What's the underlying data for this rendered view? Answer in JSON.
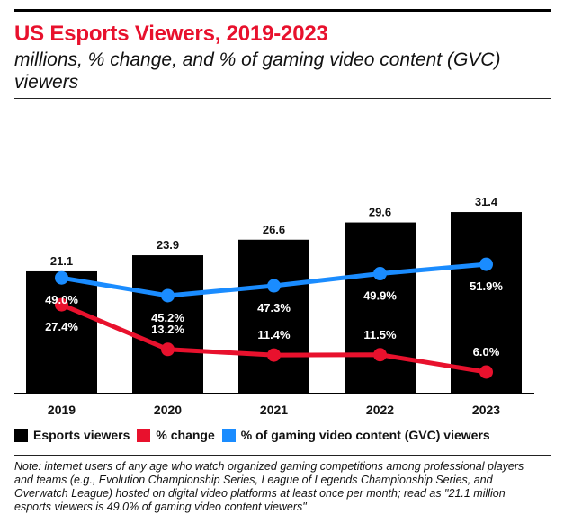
{
  "header": {
    "title": "US Esports Viewers, 2019-2023",
    "subtitle": "millions, % change, and % of gaming video content (GVC) viewers"
  },
  "colors": {
    "title": "#e8112d",
    "bars": "#000000",
    "change": "#e8112d",
    "share": "#1a8cff"
  },
  "chart_data": {
    "type": "bar",
    "categories": [
      "2019",
      "2020",
      "2021",
      "2022",
      "2023"
    ],
    "series": [
      {
        "name": "Esports viewers",
        "type": "bar",
        "values": [
          21.1,
          23.9,
          26.6,
          29.6,
          31.4
        ],
        "labels": [
          "21.1",
          "23.9",
          "26.6",
          "29.6",
          "31.4"
        ]
      },
      {
        "name": "% change",
        "type": "line",
        "values": [
          27.4,
          13.2,
          11.4,
          11.5,
          6.0
        ],
        "labels": [
          "27.4%",
          "13.2%",
          "11.4%",
          "11.5%",
          "6.0%"
        ]
      },
      {
        "name": "% of gaming video content (GVC) viewers",
        "type": "line",
        "values": [
          49.0,
          45.2,
          47.3,
          49.9,
          51.9
        ],
        "labels": [
          "49.0%",
          "45.2%",
          "47.3%",
          "49.9%",
          "51.9%"
        ]
      }
    ],
    "legend_position": "bottom",
    "grid": false
  },
  "legend": {
    "items": [
      {
        "label": "Esports viewers",
        "color": "#000000"
      },
      {
        "label": "% change",
        "color": "#e8112d"
      },
      {
        "label": "% of gaming video content (GVC) viewers",
        "color": "#1a8cff"
      }
    ]
  },
  "footer": {
    "note": "Note: internet users of any age who watch organized gaming competitions among professional players and teams (e.g., Evolution Championship Series, League of Legends Championship Series, and Overwatch League) hosted on digital video platforms at least once per month; read as \"21.1 million esports viewers is 49.0% of gaming video content viewers\""
  }
}
